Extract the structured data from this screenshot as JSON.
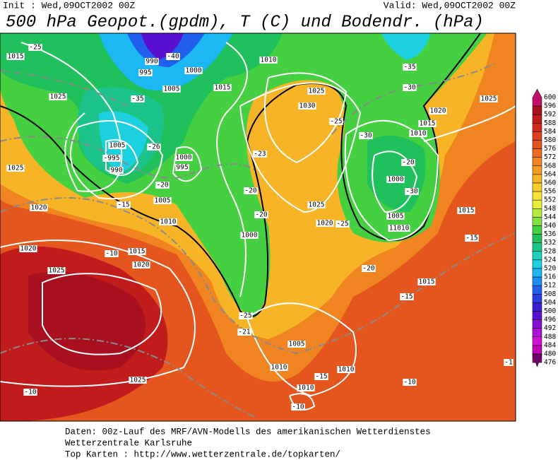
{
  "header": {
    "init": "Init : Wed,09OCT2002 00Z",
    "valid": "Valid: Wed,09OCT2002 00Z",
    "title": "500 hPa Geopot.(gpdm), T (C) und Bodendr. (hPa)"
  },
  "map": {
    "contour_labels": [
      "1015",
      "-25",
      "1025",
      "995",
      "990",
      "-40",
      "1000",
      "1005",
      "-35",
      "1010",
      "1015",
      "1025",
      "1030",
      "-25",
      "-23",
      "-30",
      "1010",
      "1020",
      "1015",
      "1025",
      "-35",
      "-30",
      "1005",
      "-995",
      "990",
      "-26",
      "1000",
      "995",
      "1025",
      "1020",
      "-20",
      "-15",
      "1005",
      "1010",
      "1020",
      "-10",
      "1015",
      "1020",
      "1025",
      "-20",
      "-20",
      "1000",
      "1025",
      "1020",
      "-25",
      "1000",
      "-30",
      "-20",
      "1005",
      "11010",
      "1015",
      "-15",
      "-20",
      "-15",
      "1015",
      "-25",
      "-21",
      "1005",
      "1010",
      "1010",
      "-15",
      "-10",
      "1010",
      "-10",
      "1025",
      "-10",
      "-1"
    ],
    "colorbar": {
      "levels": [
        600,
        596,
        592,
        588,
        584,
        580,
        576,
        572,
        568,
        564,
        560,
        556,
        552,
        548,
        544,
        540,
        536,
        532,
        528,
        524,
        520,
        516,
        512,
        508,
        504,
        500,
        496,
        492,
        488,
        484,
        480,
        476
      ],
      "colors": [
        "#c0106a",
        "#a81020",
        "#c01c1c",
        "#d02c1c",
        "#dc401c",
        "#e4561e",
        "#ea6c20",
        "#f08420",
        "#f49c22",
        "#f6b426",
        "#f8cc2c",
        "#f8e038",
        "#e6f03c",
        "#b8ec3c",
        "#80e040",
        "#44d040",
        "#20c05c",
        "#1cc48c",
        "#1cd0bc",
        "#1cd0e0",
        "#1cb8f4",
        "#1c8cf0",
        "#2060ec",
        "#2a3ee0",
        "#3a1ed0",
        "#5a10d0",
        "#8410d0",
        "#ac10d4",
        "#d010d4",
        "#c000b4",
        "#9a0090",
        "#6c006c"
      ]
    }
  },
  "footer": {
    "lines": [
      "Daten: 00z-Lauf des MRF/AVN-Modells des amerikanischen Wetterdienstes",
      "Wetterzentrale Karlsruhe",
      "Top Karten :  http://www.wetterzentrale.de/topkarten/"
    ]
  }
}
